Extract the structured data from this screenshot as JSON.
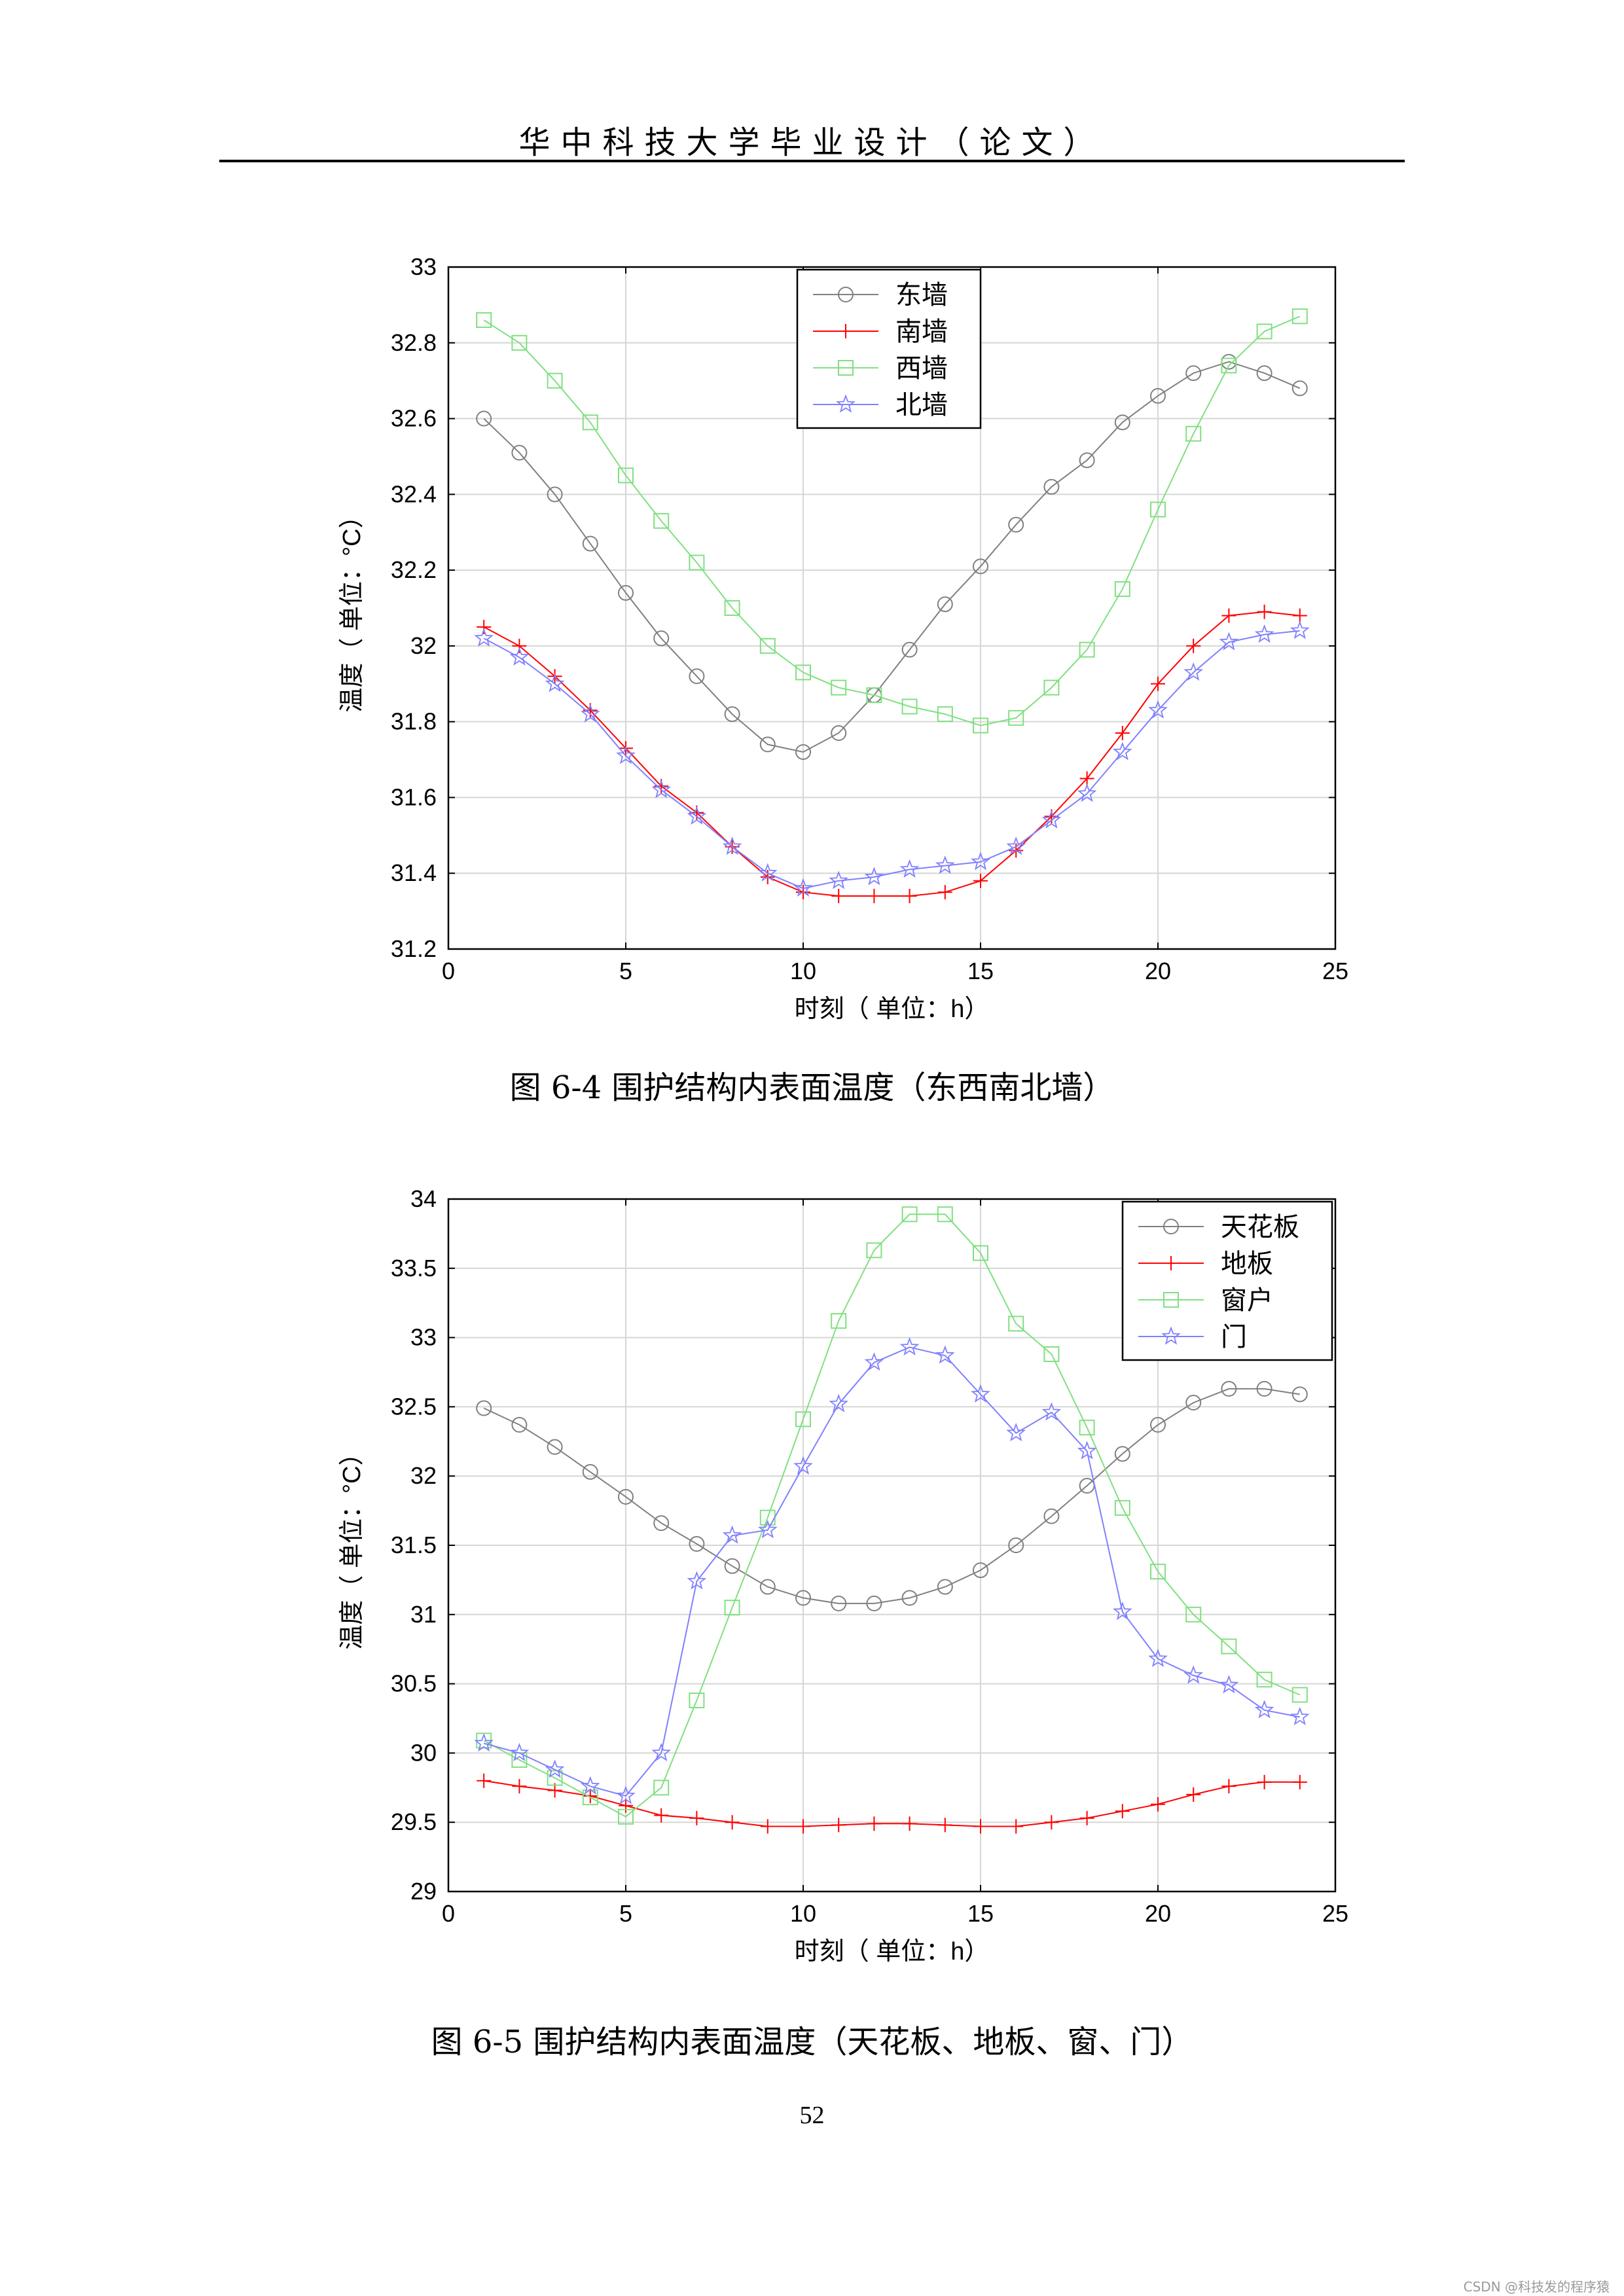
{
  "header": {
    "title": "华中科技大学毕业设计（论文）"
  },
  "figures": [
    {
      "caption": "图  6-4  围护结构内表面温度（东西南北墙）"
    },
    {
      "caption": "图  6-5  围护结构内表面温度（天花板、地板、窗、门）"
    }
  ],
  "page_number": "52",
  "watermark": "CSDN @科技发的程序猿",
  "colors": {
    "gray": "#808080",
    "red": "#ff0000",
    "green": "#80e080",
    "blue": "#8080ff",
    "grid": "#d6d6d6"
  },
  "chart_data": [
    {
      "type": "line",
      "title": "",
      "xlabel": "时刻（ 单位：h）",
      "ylabel": "温度（ 单位：°C）",
      "xlim": [
        0,
        25
      ],
      "ylim": [
        31.2,
        33
      ],
      "xticks": [
        0,
        5,
        10,
        15,
        20,
        25
      ],
      "yticks": [
        31.2,
        31.4,
        31.6,
        31.8,
        32,
        32.2,
        32.4,
        32.6,
        32.8,
        33
      ],
      "xtick_labels": [
        "0",
        "5",
        "10",
        "15",
        "20",
        "25"
      ],
      "ytick_labels": [
        "31.2",
        "31.4",
        "31.6",
        "31.8",
        "32",
        "32.2",
        "32.4",
        "32.6",
        "32.8",
        "33"
      ],
      "grid": true,
      "legend_position": "top-center",
      "x": [
        1,
        2,
        3,
        4,
        5,
        6,
        7,
        8,
        9,
        10,
        11,
        12,
        13,
        14,
        15,
        16,
        17,
        18,
        19,
        20,
        21,
        22,
        23,
        24
      ],
      "series": [
        {
          "name": "东墙",
          "marker": "circle",
          "color": "#808080",
          "values": [
            32.6,
            32.51,
            32.4,
            32.27,
            32.14,
            32.02,
            31.92,
            31.82,
            31.74,
            31.72,
            31.77,
            31.87,
            31.99,
            32.11,
            32.21,
            32.32,
            32.42,
            32.49,
            32.59,
            32.66,
            32.72,
            32.75,
            32.72,
            32.68
          ]
        },
        {
          "name": "南墙",
          "marker": "plus",
          "color": "#ff0000",
          "values": [
            32.05,
            32.0,
            31.92,
            31.83,
            31.73,
            31.63,
            31.56,
            31.47,
            31.39,
            31.35,
            31.34,
            31.34,
            31.34,
            31.35,
            31.38,
            31.46,
            31.55,
            31.65,
            31.77,
            31.9,
            32.0,
            32.08,
            32.09,
            32.08
          ]
        },
        {
          "name": "西墙",
          "marker": "square",
          "color": "#80e080",
          "values": [
            32.86,
            32.8,
            32.7,
            32.59,
            32.45,
            32.33,
            32.22,
            32.1,
            32.0,
            31.93,
            31.89,
            31.87,
            31.84,
            31.82,
            31.79,
            31.81,
            31.89,
            31.99,
            32.15,
            32.36,
            32.56,
            32.74,
            32.83,
            32.87
          ]
        },
        {
          "name": "北墙",
          "marker": "star",
          "color": "#8080ff",
          "values": [
            32.02,
            31.97,
            31.9,
            31.82,
            31.71,
            31.62,
            31.55,
            31.47,
            31.4,
            31.36,
            31.38,
            31.39,
            31.41,
            31.42,
            31.43,
            31.47,
            31.54,
            31.61,
            31.72,
            31.83,
            31.93,
            32.01,
            32.03,
            32.04
          ]
        }
      ]
    },
    {
      "type": "line",
      "title": "",
      "xlabel": "时刻（ 单位：h）",
      "ylabel": "温度（ 单位：°C）",
      "xlim": [
        0,
        25
      ],
      "ylim": [
        29,
        34
      ],
      "xticks": [
        0,
        5,
        10,
        15,
        20,
        25
      ],
      "yticks": [
        29,
        29.5,
        30,
        30.5,
        31,
        31.5,
        32,
        32.5,
        33,
        33.5,
        34
      ],
      "xtick_labels": [
        "0",
        "5",
        "10",
        "15",
        "20",
        "25"
      ],
      "ytick_labels": [
        "29",
        "29.5",
        "30",
        "30.5",
        "31",
        "31.5",
        "32",
        "32.5",
        "33",
        "33.5",
        "34"
      ],
      "grid": true,
      "legend_position": "top-right",
      "x": [
        1,
        2,
        3,
        4,
        5,
        6,
        7,
        8,
        9,
        10,
        11,
        12,
        13,
        14,
        15,
        16,
        17,
        18,
        19,
        20,
        21,
        22,
        23,
        24
      ],
      "series": [
        {
          "name": "天花板",
          "marker": "circle",
          "color": "#808080",
          "values": [
            32.49,
            32.37,
            32.21,
            32.03,
            31.85,
            31.66,
            31.51,
            31.35,
            31.2,
            31.12,
            31.08,
            31.08,
            31.12,
            31.2,
            31.32,
            31.5,
            31.71,
            31.93,
            32.16,
            32.37,
            32.53,
            32.63,
            32.63,
            32.59
          ]
        },
        {
          "name": "地板",
          "marker": "plus",
          "color": "#ff0000",
          "values": [
            29.8,
            29.76,
            29.73,
            29.69,
            29.62,
            29.55,
            29.53,
            29.5,
            29.47,
            29.47,
            29.48,
            29.49,
            29.49,
            29.48,
            29.47,
            29.47,
            29.5,
            29.53,
            29.58,
            29.63,
            29.7,
            29.76,
            29.79,
            29.79
          ]
        },
        {
          "name": "窗户",
          "marker": "square",
          "color": "#80e080",
          "values": [
            30.09,
            29.95,
            29.82,
            29.68,
            29.54,
            29.75,
            30.38,
            31.05,
            31.7,
            32.41,
            33.12,
            33.63,
            33.89,
            33.89,
            33.61,
            33.1,
            32.88,
            32.35,
            31.77,
            31.31,
            31.0,
            30.77,
            30.53,
            30.42
          ]
        },
        {
          "name": "门",
          "marker": "star",
          "color": "#8080ff",
          "values": [
            30.07,
            30.0,
            29.88,
            29.76,
            29.69,
            30.0,
            31.24,
            31.57,
            31.61,
            32.07,
            32.52,
            32.82,
            32.93,
            32.87,
            32.59,
            32.31,
            32.46,
            32.18,
            31.02,
            30.68,
            30.56,
            30.49,
            30.31,
            30.26
          ]
        }
      ]
    }
  ]
}
